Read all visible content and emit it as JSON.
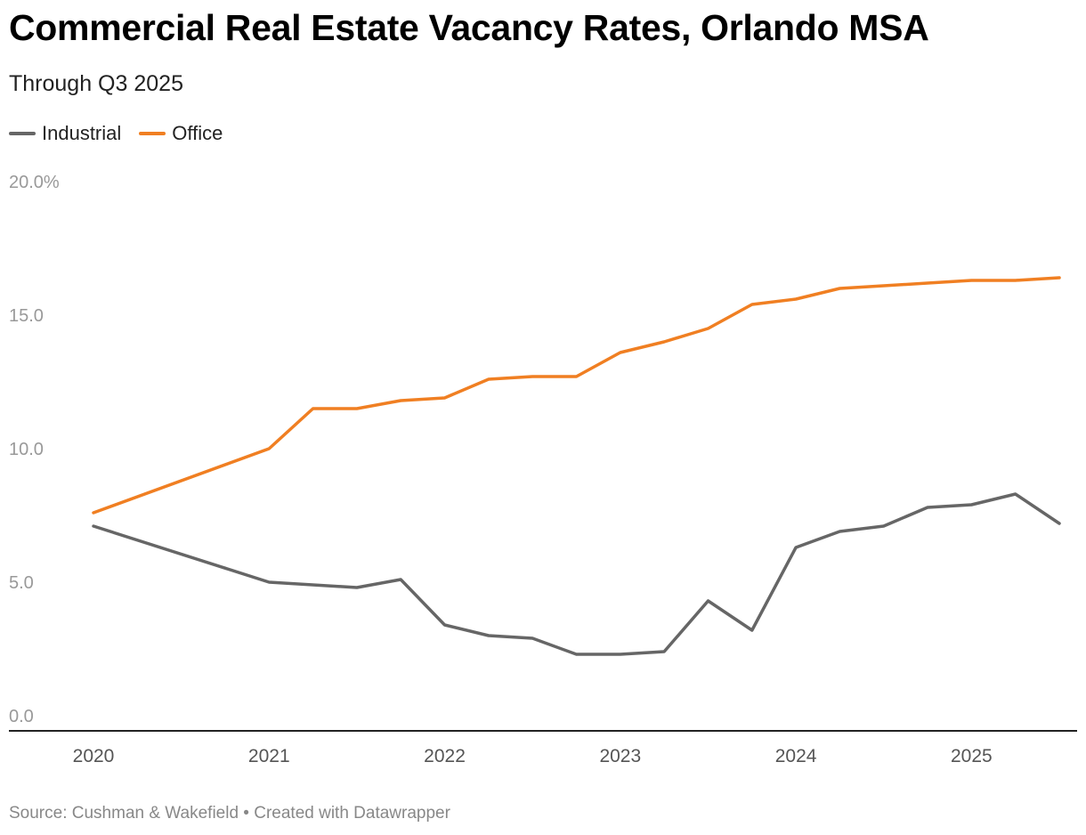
{
  "title": "Commercial Real Estate Vacancy Rates, Orlando MSA",
  "subtitle": "Through Q3 2025",
  "source": "Source: Cushman & Wakefield • Created with Datawrapper",
  "colors": {
    "industrial": "#666666",
    "office": "#f07f22",
    "axis": "#222222"
  },
  "chart_data": {
    "type": "line",
    "y_ticks": [
      {
        "value": 0,
        "label": "0.0"
      },
      {
        "value": 5,
        "label": "5.0"
      },
      {
        "value": 10,
        "label": "10.0"
      },
      {
        "value": 15,
        "label": "15.0"
      },
      {
        "value": 20,
        "label": "20.0%"
      }
    ],
    "x_ticks": [
      {
        "value": "2020",
        "label": "2020"
      },
      {
        "value": "2021",
        "label": "2021"
      },
      {
        "value": "2022",
        "label": "2022"
      },
      {
        "value": "2023",
        "label": "2023"
      },
      {
        "value": "2024",
        "label": "2024"
      },
      {
        "value": "2025",
        "label": "2025"
      }
    ],
    "xlim": [
      "2020",
      "2025.5"
    ],
    "ylim": [
      0,
      20
    ],
    "grid": false,
    "legend_position": "top-left",
    "series": [
      {
        "name": "Industrial",
        "color": "#666666",
        "points": [
          [
            "2020",
            7.1
          ],
          [
            "2021",
            5.0
          ],
          [
            "2021.5",
            4.8
          ],
          [
            "2021.75",
            5.1
          ],
          [
            "2022",
            3.4
          ],
          [
            "2022.25",
            3.0
          ],
          [
            "2022.5",
            2.9
          ],
          [
            "2022.75",
            2.3
          ],
          [
            "2023",
            2.3
          ],
          [
            "2023.25",
            2.4
          ],
          [
            "2023.5",
            4.3
          ],
          [
            "2023.75",
            3.2
          ],
          [
            "2024",
            6.3
          ],
          [
            "2024.25",
            6.9
          ],
          [
            "2024.5",
            7.1
          ],
          [
            "2024.75",
            7.8
          ],
          [
            "2025",
            7.9
          ],
          [
            "2025.25",
            8.3
          ],
          [
            "2025.5",
            7.2
          ]
        ]
      },
      {
        "name": "Office",
        "color": "#f07f22",
        "points": [
          [
            "2020",
            7.6
          ],
          [
            "2021",
            10.0
          ],
          [
            "2021.25",
            11.5
          ],
          [
            "2021.5",
            11.5
          ],
          [
            "2021.75",
            11.8
          ],
          [
            "2022",
            11.9
          ],
          [
            "2022.25",
            12.6
          ],
          [
            "2022.5",
            12.7
          ],
          [
            "2022.75",
            12.7
          ],
          [
            "2023",
            13.6
          ],
          [
            "2023.25",
            14.0
          ],
          [
            "2023.5",
            14.5
          ],
          [
            "2023.75",
            15.4
          ],
          [
            "2024",
            15.6
          ],
          [
            "2024.25",
            16.0
          ],
          [
            "2024.5",
            16.1
          ],
          [
            "2024.75",
            16.2
          ],
          [
            "2025",
            16.3
          ],
          [
            "2025.25",
            16.3
          ],
          [
            "2025.5",
            16.4
          ]
        ]
      }
    ]
  }
}
